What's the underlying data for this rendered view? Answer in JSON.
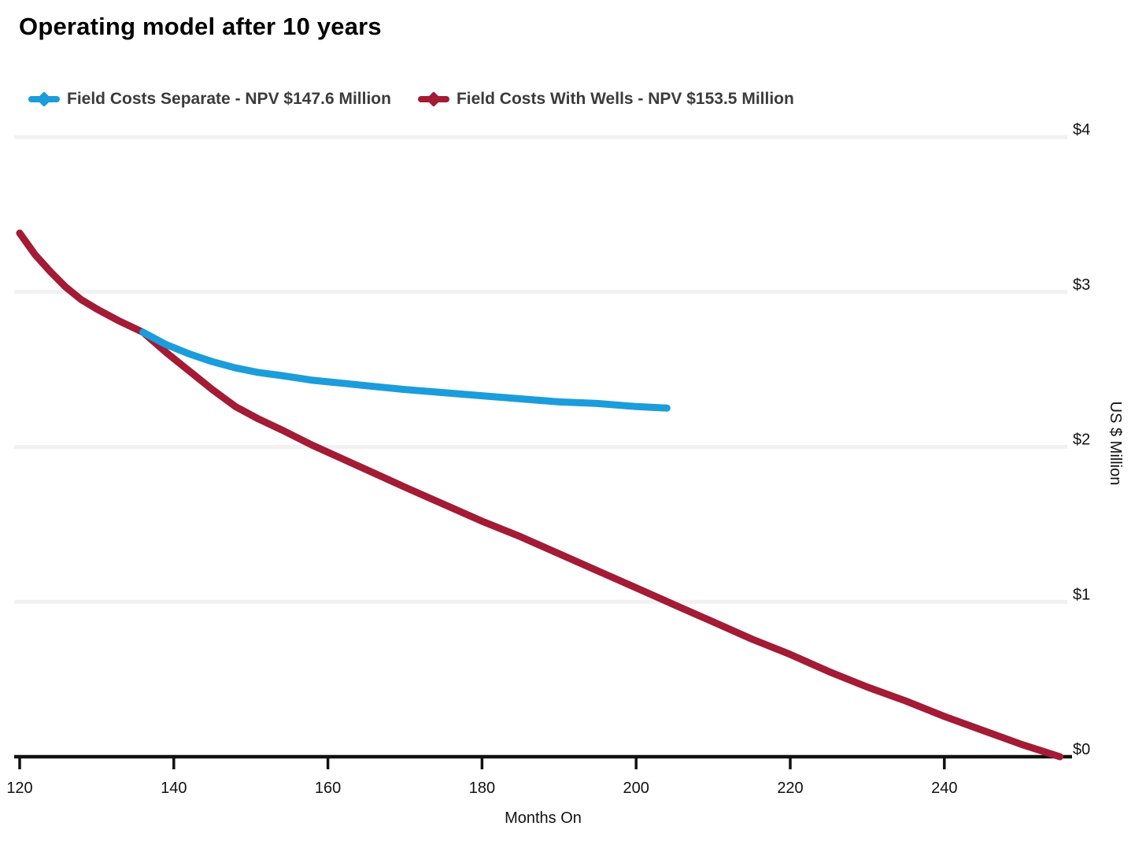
{
  "title": "Operating model after 10 years",
  "chart_data": {
    "type": "line",
    "title": "Operating model after 10 years",
    "xlabel": "Months On",
    "ylabel": "US $ Million",
    "xlim": [
      120,
      256
    ],
    "ylim": [
      0,
      4
    ],
    "grid": "horizontal",
    "grid_color": "#f1f1f1",
    "axis_color": "#111111",
    "legend_position": "top",
    "x_ticks": [
      120,
      140,
      160,
      180,
      200,
      220,
      240
    ],
    "y_ticks": [
      {
        "value": 0,
        "label": "$0"
      },
      {
        "value": 1,
        "label": "$1"
      },
      {
        "value": 2,
        "label": "$2"
      },
      {
        "value": 3,
        "label": "$3"
      },
      {
        "value": 4,
        "label": "$4"
      }
    ],
    "series": [
      {
        "name": "Field Costs Separate - NPV $147.6 Million",
        "color": "#1B9DDB",
        "points": [
          [
            136,
            2.74
          ],
          [
            139,
            2.66
          ],
          [
            142,
            2.6
          ],
          [
            145,
            2.55
          ],
          [
            148,
            2.51
          ],
          [
            151,
            2.48
          ],
          [
            154,
            2.46
          ],
          [
            158,
            2.43
          ],
          [
            162,
            2.41
          ],
          [
            166,
            2.39
          ],
          [
            170,
            2.37
          ],
          [
            175,
            2.35
          ],
          [
            180,
            2.33
          ],
          [
            185,
            2.31
          ],
          [
            190,
            2.29
          ],
          [
            195,
            2.28
          ],
          [
            200,
            2.26
          ],
          [
            204,
            2.25
          ]
        ]
      },
      {
        "name": "Field Costs With Wells - NPV $153.5 Million",
        "color": "#A31B34",
        "points": [
          [
            120,
            3.38
          ],
          [
            122,
            3.24
          ],
          [
            124,
            3.13
          ],
          [
            126,
            3.03
          ],
          [
            128,
            2.95
          ],
          [
            130,
            2.89
          ],
          [
            133,
            2.81
          ],
          [
            136,
            2.74
          ],
          [
            139,
            2.61
          ],
          [
            142,
            2.49
          ],
          [
            145,
            2.37
          ],
          [
            148,
            2.26
          ],
          [
            151,
            2.18
          ],
          [
            154,
            2.11
          ],
          [
            158,
            2.01
          ],
          [
            162,
            1.92
          ],
          [
            166,
            1.83
          ],
          [
            170,
            1.74
          ],
          [
            175,
            1.63
          ],
          [
            180,
            1.52
          ],
          [
            185,
            1.42
          ],
          [
            190,
            1.31
          ],
          [
            195,
            1.2
          ],
          [
            200,
            1.09
          ],
          [
            205,
            0.98
          ],
          [
            210,
            0.87
          ],
          [
            215,
            0.76
          ],
          [
            220,
            0.66
          ],
          [
            225,
            0.55
          ],
          [
            230,
            0.45
          ],
          [
            235,
            0.36
          ],
          [
            240,
            0.26
          ],
          [
            245,
            0.17
          ],
          [
            250,
            0.08
          ],
          [
            255,
            0.0
          ]
        ]
      }
    ]
  }
}
